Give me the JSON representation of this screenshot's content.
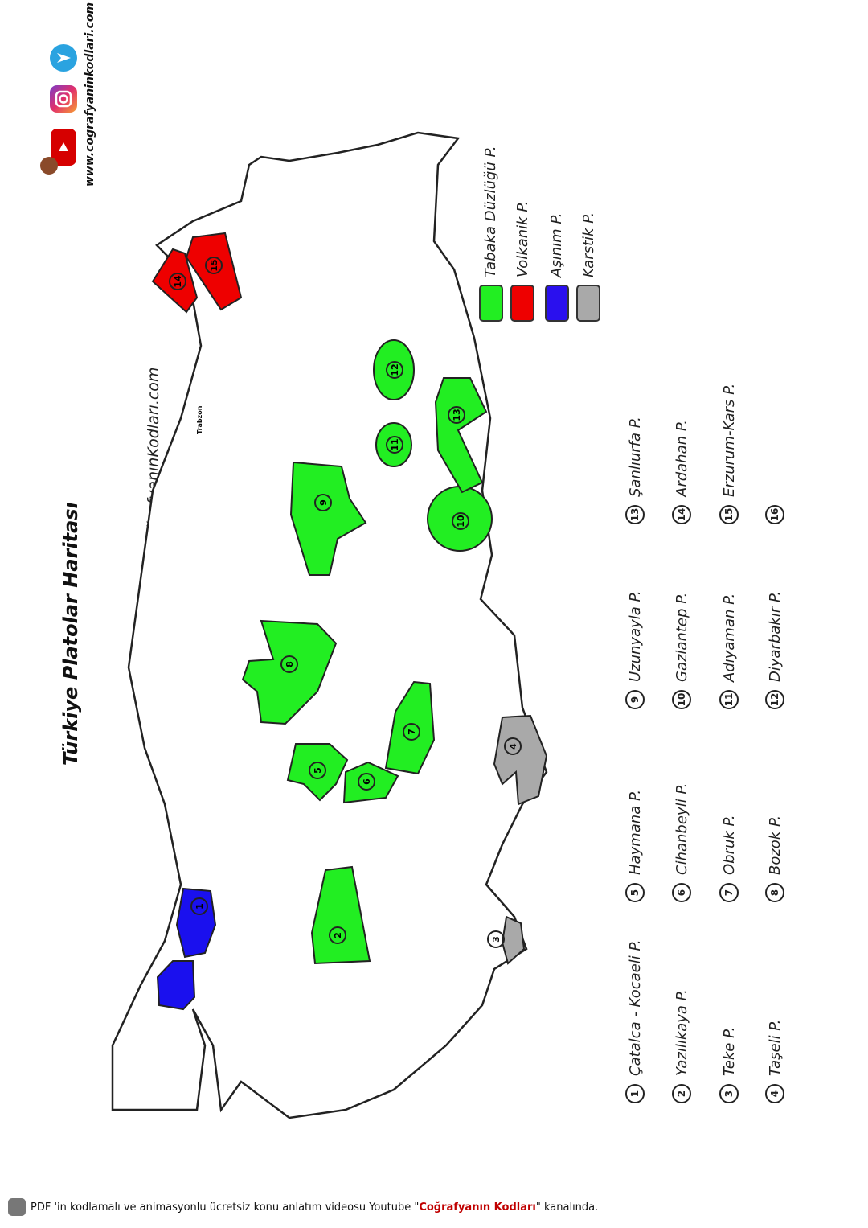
{
  "title": "Türkiye Platolar Haritası",
  "watermark": "CoğrafyanınKodları.com",
  "city_label": "Trabzon",
  "website": "www.cografyaninkodlari.com",
  "social_icons": [
    "telegram-icon",
    "instagram-icon",
    "youtube-icon"
  ],
  "legend": [
    {
      "label": "Tabaka Düzlüğü P.",
      "color": "#22ee22"
    },
    {
      "label": "Volkanik P.",
      "color": "#ee0000"
    },
    {
      "label": "Aşınım P.",
      "color": "#2a10ee"
    },
    {
      "label": "Karstik P.",
      "color": "#a9a9a9"
    }
  ],
  "plateaus": [
    {
      "n": "1",
      "name": "Çatalca - Kocaeli P.",
      "type": "Aşınım"
    },
    {
      "n": "2",
      "name": "Yazılıkaya P.",
      "type": "Tabaka Düzlüğü"
    },
    {
      "n": "3",
      "name": "Teke P.",
      "type": "Karstik"
    },
    {
      "n": "4",
      "name": "Taşeli P.",
      "type": "Karstik"
    },
    {
      "n": "5",
      "name": "Haymana P.",
      "type": "Tabaka Düzlüğü"
    },
    {
      "n": "6",
      "name": "Cihanbeyli P.",
      "type": "Tabaka Düzlüğü"
    },
    {
      "n": "7",
      "name": "Obruk P.",
      "type": "Tabaka Düzlüğü"
    },
    {
      "n": "8",
      "name": "Bozok P.",
      "type": "Tabaka Düzlüğü"
    },
    {
      "n": "9",
      "name": "Uzunyayla P.",
      "type": "Tabaka Düzlüğü"
    },
    {
      "n": "10",
      "name": "Gaziantep P.",
      "type": "Tabaka Düzlüğü"
    },
    {
      "n": "11",
      "name": "Adıyaman P.",
      "type": "Tabaka Düzlüğü"
    },
    {
      "n": "12",
      "name": "Diyarbakır P.",
      "type": "Tabaka Düzlüğü"
    },
    {
      "n": "13",
      "name": "Şanlıurfa P.",
      "type": "Tabaka Düzlüğü"
    },
    {
      "n": "14",
      "name": "Ardahan P.",
      "type": "Volkanik"
    },
    {
      "n": "15",
      "name": "Erzurum-Kars P.",
      "type": "Volkanik"
    },
    {
      "n": "16",
      "name": "",
      "type": ""
    }
  ],
  "footer": {
    "text_before": "PDF 'in kodlamalı ve animasyonlu ücretsiz konu anlatım videosu Youtube \"",
    "brand": "Coğrafyanın Kodları",
    "text_after": "\" kanalında."
  }
}
